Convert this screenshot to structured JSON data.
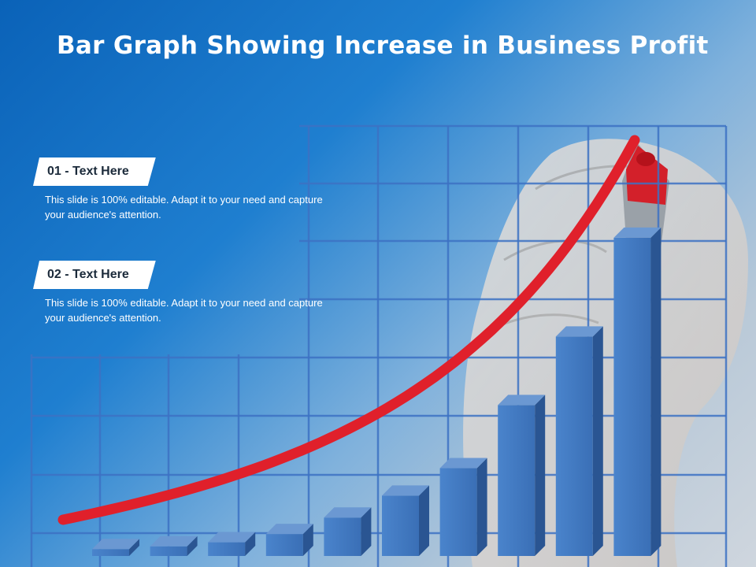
{
  "slide": {
    "title": "Bar Graph Showing Increase in Business Profit"
  },
  "items": [
    {
      "label": "01 - Text Here",
      "text": "This slide is 100% editable. Adapt it to your need and capture your audience's attention."
    },
    {
      "label": "02 - Text Here",
      "text": "This slide is 100% editable. Adapt it to your need and capture your audience's attention."
    }
  ],
  "chart_data": {
    "type": "bar",
    "title": "",
    "xlabel": "",
    "ylabel": "",
    "categories": [
      "",
      "",
      "",
      "",
      "",
      "",
      "",
      "",
      "",
      ""
    ],
    "values": [
      2.5,
      3.5,
      5,
      8,
      14,
      22,
      32,
      55,
      80,
      116
    ],
    "ylim": [
      0,
      120
    ],
    "trend_line": true,
    "grid": true,
    "colors": {
      "bar_front": "#3f78c0",
      "bar_side": "#2a5592",
      "bar_top": "#6b98d2",
      "trend": "#e0202b",
      "grid": "#3d72c4"
    }
  }
}
